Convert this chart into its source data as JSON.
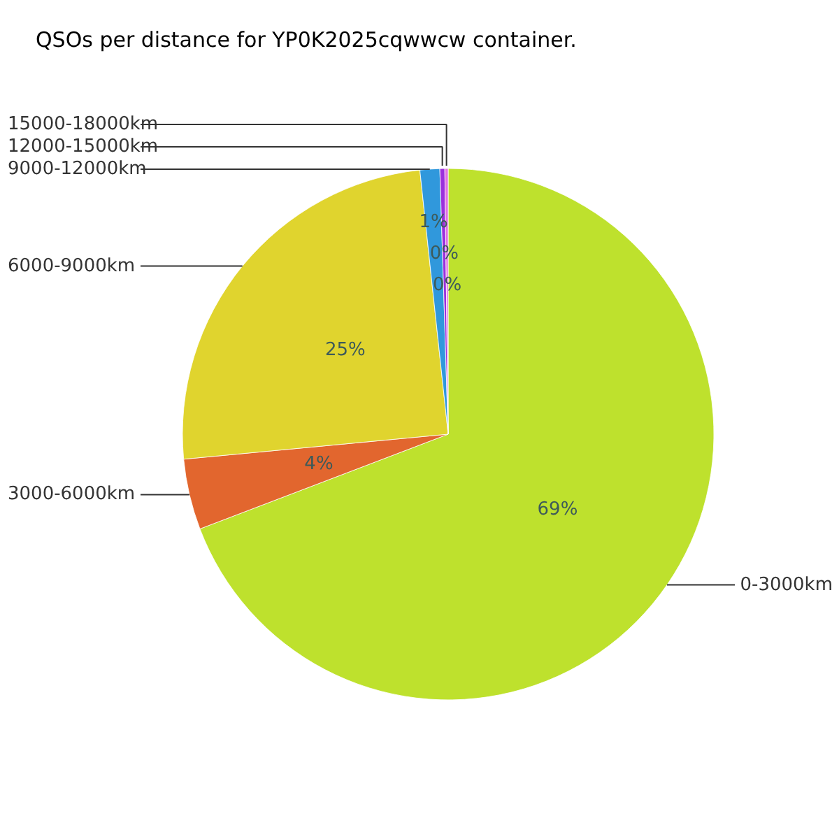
{
  "chart_data": {
    "type": "pie",
    "title": "QSOs per distance for YP0K2025cqwwcw container.",
    "categories": [
      "0-3000km",
      "3000-6000km",
      "6000-9000km",
      "9000-12000km",
      "12000-15000km",
      "15000-18000km"
    ],
    "values": [
      69.2,
      4.3,
      24.8,
      1.2,
      0.3,
      0.2
    ],
    "colors": [
      "#bee12d",
      "#e2662e",
      "#e0d42e",
      "#3098dc",
      "#9b30dc",
      "#e070e0"
    ],
    "value_labels": [
      "69%",
      "4%",
      "25%",
      "1%",
      "0%",
      "0%"
    ]
  }
}
